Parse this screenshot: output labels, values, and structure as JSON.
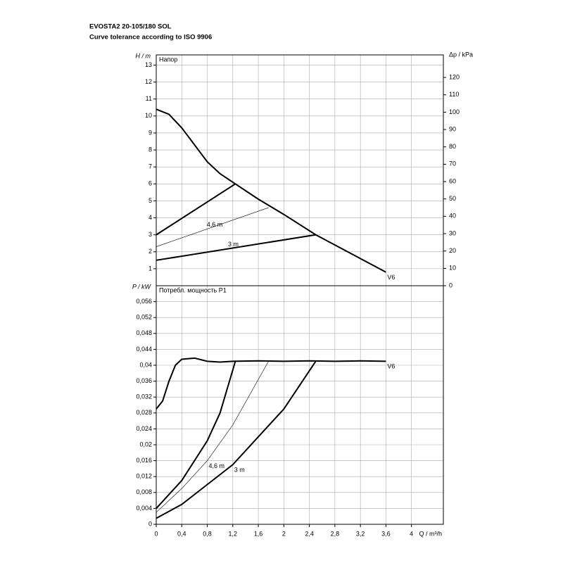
{
  "chart_data": [
    {
      "type": "line",
      "title": "EVOSTA2 20-105/180 SOL",
      "subtitle": "Curve tolerance according to ISO 9906",
      "ylabel": "H / m",
      "y2label": "Δp / kPa",
      "panel_label": "Напор",
      "xlim": [
        0,
        4.5
      ],
      "ylim": [
        0,
        13.6
      ],
      "yticks": [
        1,
        2,
        3,
        4,
        5,
        6,
        7,
        8,
        9,
        10,
        11,
        12,
        13
      ],
      "y2lim": [
        0,
        133
      ],
      "y2ticks": [
        0,
        10,
        20,
        30,
        40,
        50,
        60,
        70,
        80,
        90,
        100,
        110,
        120
      ],
      "grid": true,
      "series": [
        {
          "name": "V6",
          "color": "#000000",
          "line_width": 2,
          "x": [
            0,
            0.2,
            0.4,
            0.6,
            0.8,
            1.0,
            1.24,
            1.6,
            2.0,
            2.5,
            3.0,
            3.6
          ],
          "values": [
            10.4,
            10.1,
            9.3,
            8.3,
            7.3,
            6.6,
            6.0,
            5.1,
            4.2,
            3.0,
            2.0,
            0.8
          ]
        },
        {
          "color": "#000000",
          "line_width": 2,
          "x": [
            0,
            1.24
          ],
          "values": [
            3.0,
            6.0
          ]
        },
        {
          "name": "4,6 m",
          "color": "#000000",
          "line_width": 0.6,
          "x": [
            0,
            1.76
          ],
          "values": [
            2.3,
            4.6
          ]
        },
        {
          "name": "3 m",
          "color": "#000000",
          "line_width": 2,
          "x": [
            0,
            2.5
          ],
          "values": [
            1.5,
            3.0
          ]
        }
      ]
    },
    {
      "type": "line",
      "ylabel": "P / kW",
      "panel_label": "Потребл. мощность P1",
      "xlabel": "Q / m³/h",
      "xlim": [
        0,
        4.5
      ],
      "xticks": [
        0,
        {
          "value": 0.4,
          "label": "0,4"
        },
        {
          "value": 0.8,
          "label": "0,8"
        },
        {
          "value": 1.2,
          "label": "1,2"
        },
        {
          "value": 1.6,
          "label": "1,6"
        },
        2,
        {
          "value": 2.4,
          "label": "2,4"
        },
        {
          "value": 2.8,
          "label": "2,8"
        },
        {
          "value": 3.2,
          "label": "3,2"
        },
        {
          "value": 3.6,
          "label": "3,6"
        },
        4
      ],
      "ylim": [
        0,
        0.06
      ],
      "yticks": [
        0,
        {
          "value": 0.004,
          "label": "0,004"
        },
        {
          "value": 0.008,
          "label": "0,008"
        },
        {
          "value": 0.012,
          "label": "0,012"
        },
        {
          "value": 0.016,
          "label": "0,016"
        },
        {
          "value": 0.02,
          "label": "0,02"
        },
        {
          "value": 0.024,
          "label": "0,024"
        },
        {
          "value": 0.028,
          "label": "0,028"
        },
        {
          "value": 0.032,
          "label": "0,032"
        },
        {
          "value": 0.036,
          "label": "0,036"
        },
        {
          "value": 0.04,
          "label": "0,04"
        },
        {
          "value": 0.044,
          "label": "0,044"
        },
        {
          "value": 0.048,
          "label": "0,048"
        },
        {
          "value": 0.052,
          "label": "0,052"
        },
        {
          "value": 0.056,
          "label": "0,056"
        }
      ],
      "grid": true,
      "series": [
        {
          "name": "V6",
          "color": "#000000",
          "line_width": 2,
          "x": [
            0,
            0.1,
            0.2,
            0.3,
            0.4,
            0.6,
            0.8,
            1.0,
            1.2,
            1.6,
            2.0,
            2.4,
            2.8,
            3.2,
            3.6
          ],
          "values": [
            0.029,
            0.031,
            0.036,
            0.04,
            0.0415,
            0.0418,
            0.041,
            0.0408,
            0.041,
            0.0411,
            0.041,
            0.0411,
            0.041,
            0.0411,
            0.041
          ]
        },
        {
          "color": "#000000",
          "line_width": 2,
          "x": [
            0,
            0.4,
            0.8,
            1.0,
            1.24
          ],
          "values": [
            0.004,
            0.011,
            0.021,
            0.028,
            0.041
          ]
        },
        {
          "name": "4,6 m",
          "color": "#000000",
          "line_width": 0.6,
          "x": [
            0,
            0.4,
            0.8,
            1.2,
            1.76
          ],
          "values": [
            0.003,
            0.009,
            0.016,
            0.025,
            0.041
          ]
        },
        {
          "name": "3 m",
          "color": "#000000",
          "line_width": 2,
          "x": [
            0,
            0.4,
            0.8,
            1.2,
            1.6,
            2.0,
            2.5
          ],
          "values": [
            0.0015,
            0.005,
            0.01,
            0.015,
            0.022,
            0.029,
            0.041
          ]
        }
      ]
    }
  ]
}
